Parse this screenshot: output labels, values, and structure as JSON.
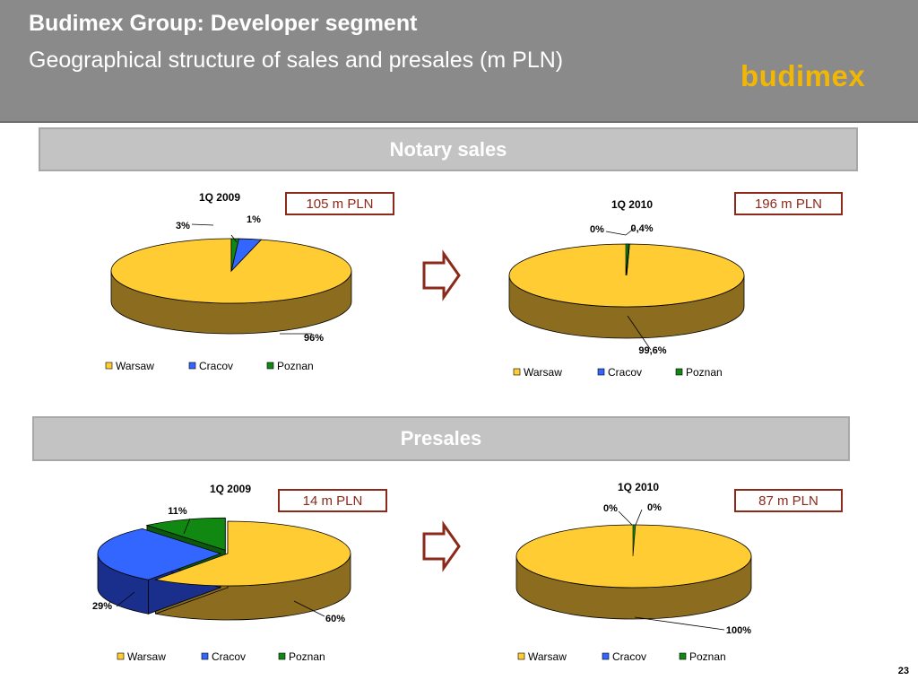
{
  "header": {
    "title": "Budimex Group: Developer segment",
    "subtitle": "Geographical structure of sales and presales (m PLN)",
    "logo_text": "budimex"
  },
  "sections": {
    "notary": "Notary sales",
    "presales": "Presales"
  },
  "colors": {
    "header_bg": "#8a8a8a",
    "band_bg": "#c3c3c3",
    "warsaw": "#ffcc33",
    "warsaw_side": "#8c6d1f",
    "cracov": "#3366ff",
    "cracov_side": "#1a2f8c",
    "poznan": "#118811",
    "poznan_side": "#0b5a0b",
    "accent": "#8b2a1a",
    "logo": "#f2b705"
  },
  "totals": [
    "105 m PLN",
    "196 m PLN",
    "14 m PLN",
    "87 m PLN"
  ],
  "page_number": "23",
  "chart_data": [
    {
      "type": "pie",
      "section": "Notary sales",
      "title": "1Q 2009",
      "total": "105 m PLN",
      "categories": [
        "Warsaw",
        "Cracov",
        "Poznan"
      ],
      "values": [
        96,
        3,
        1
      ],
      "data_labels": [
        "96%",
        "3%",
        "1%"
      ],
      "legend": [
        "Warsaw",
        "Cracov",
        "Poznan"
      ]
    },
    {
      "type": "pie",
      "section": "Notary sales",
      "title": "1Q 2010",
      "total": "196 m PLN",
      "categories": [
        "Warsaw",
        "Cracov",
        "Poznan"
      ],
      "values": [
        99.6,
        0,
        0.4
      ],
      "data_labels": [
        "99,6%",
        "0%",
        "0,4%"
      ],
      "legend": [
        "Warsaw",
        "Cracov",
        "Poznan"
      ]
    },
    {
      "type": "pie",
      "section": "Presales",
      "title": "1Q 2009",
      "total": "14 m PLN",
      "categories": [
        "Warsaw",
        "Cracov",
        "Poznan"
      ],
      "values": [
        60,
        29,
        11
      ],
      "data_labels": [
        "60%",
        "29%",
        "11%"
      ],
      "legend": [
        "Warsaw",
        "Cracov",
        "Poznan"
      ]
    },
    {
      "type": "pie",
      "section": "Presales",
      "title": "1Q 2010",
      "total": "87 m PLN",
      "categories": [
        "Warsaw",
        "Cracov",
        "Poznan"
      ],
      "values": [
        100,
        0,
        0
      ],
      "data_labels": [
        "100%",
        "0%",
        "0%"
      ],
      "legend": [
        "Warsaw",
        "Cracov",
        "Poznan"
      ]
    }
  ]
}
